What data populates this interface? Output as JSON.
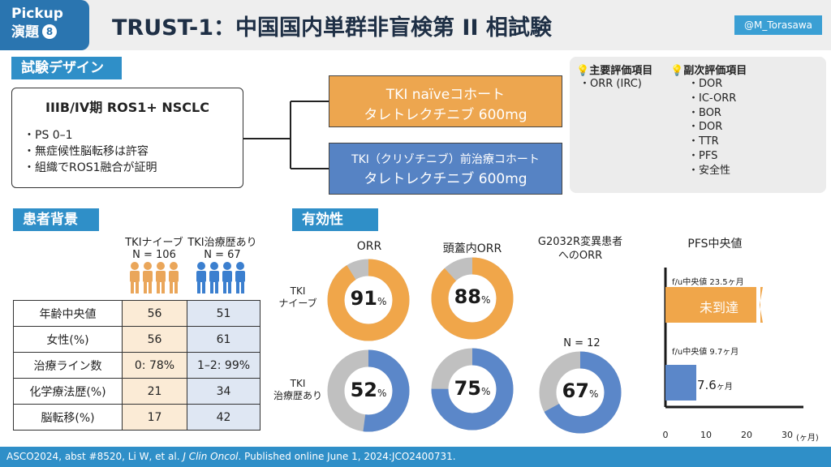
{
  "header": {
    "pickup": "Pickup",
    "topic": "演題",
    "topic_number": "8",
    "title": "TRUST-1：中国国内単群非盲検第 II 相試験",
    "handle": "@M_Torasawa"
  },
  "design": {
    "section": "試験デザイン",
    "population_title": "IIIB/IV期 ROS1+ NSCLC",
    "criteria": [
      "・PS 0–1",
      "・無症候性脳転移は許容",
      "・組織でROS1融合が証明"
    ],
    "cohort1": {
      "line1": "TKI naïveコホート",
      "line2": "タレトレクチニブ 600mg"
    },
    "cohort2": {
      "line1": "TKI（クリゾチニブ）前治療コホート",
      "line2": "タレトレクチニブ 600mg"
    }
  },
  "endpoints": {
    "primary_title": "主要評価項目",
    "primary_items": [
      "・ORR (IRC)"
    ],
    "secondary_title": "副次評価項目",
    "secondary_items": [
      "・DOR",
      "・IC-ORR",
      "・BOR",
      "・DOR",
      "・TTR",
      "・PFS",
      "・安全性"
    ]
  },
  "background": {
    "section": "患者背景",
    "group1": {
      "label": "TKIナイーブ",
      "n": "N = 106"
    },
    "group2": {
      "label": "TKI治療歴あり",
      "n": "N = 67"
    },
    "rows": [
      {
        "label": "年齢中央値",
        "naive": "56",
        "pretreated": "51"
      },
      {
        "label": "女性(%)",
        "naive": "56",
        "pretreated": "61"
      },
      {
        "label": "治療ライン数",
        "naive": "0: 78%",
        "pretreated": "1–2: 99%"
      },
      {
        "label": "化学療法歴(%)",
        "naive": "21",
        "pretreated": "34"
      },
      {
        "label": "脳転移(%)",
        "naive": "17",
        "pretreated": "42"
      }
    ]
  },
  "efficacy": {
    "section": "有効性",
    "col_orr": "ORR",
    "col_ic": "頭蓋内ORR",
    "col_g2032r_1": "G2032R変異患者",
    "col_g2032r_2": "へのORR",
    "col_pfs": "PFS中央値",
    "row_naive_1": "TKI",
    "row_naive_2": "ナイーブ",
    "row_pre_1": "TKI",
    "row_pre_2": "治療歴あり",
    "g2032r_n": "N = 12",
    "pct_sign": "%",
    "colors": {
      "naive": "#f0a64a",
      "pretreated": "#5b87c9",
      "rest": "#c0c0c0"
    },
    "donuts": [
      {
        "id": "naive-orr",
        "value": 91,
        "group": "naive"
      },
      {
        "id": "naive-ic-orr",
        "value": 88,
        "group": "naive"
      },
      {
        "id": "pretreated-orr",
        "value": 52,
        "group": "pretreated"
      },
      {
        "id": "pretreated-ic-orr",
        "value": 75,
        "group": "pretreated"
      },
      {
        "id": "g2032r-orr",
        "value": 67,
        "group": "pretreated"
      }
    ]
  },
  "chart_data": {
    "type": "bar",
    "title": "PFS中央値",
    "orientation": "horizontal",
    "categories": [
      "TKIナイーブ",
      "TKI治療歴あり"
    ],
    "values": [
      null,
      7.6
    ],
    "value_labels": [
      "未到達",
      "7.6"
    ],
    "value_unit": "ヶ月",
    "followup_labels": [
      "f/u中央値 23.5ヶ月",
      "f/u中央値 9.7ヶ月"
    ],
    "xlim": [
      0,
      30
    ],
    "xticks": [
      "0",
      "10",
      "20",
      "30"
    ],
    "xunit": "(ヶ月)"
  },
  "footer": {
    "citation_pre": "ASCO2024, abst #8520, Li W, et al. ",
    "citation_journal": "J Clin Oncol",
    "citation_post": ". Published online June 1, 2024:JCO2400731."
  }
}
